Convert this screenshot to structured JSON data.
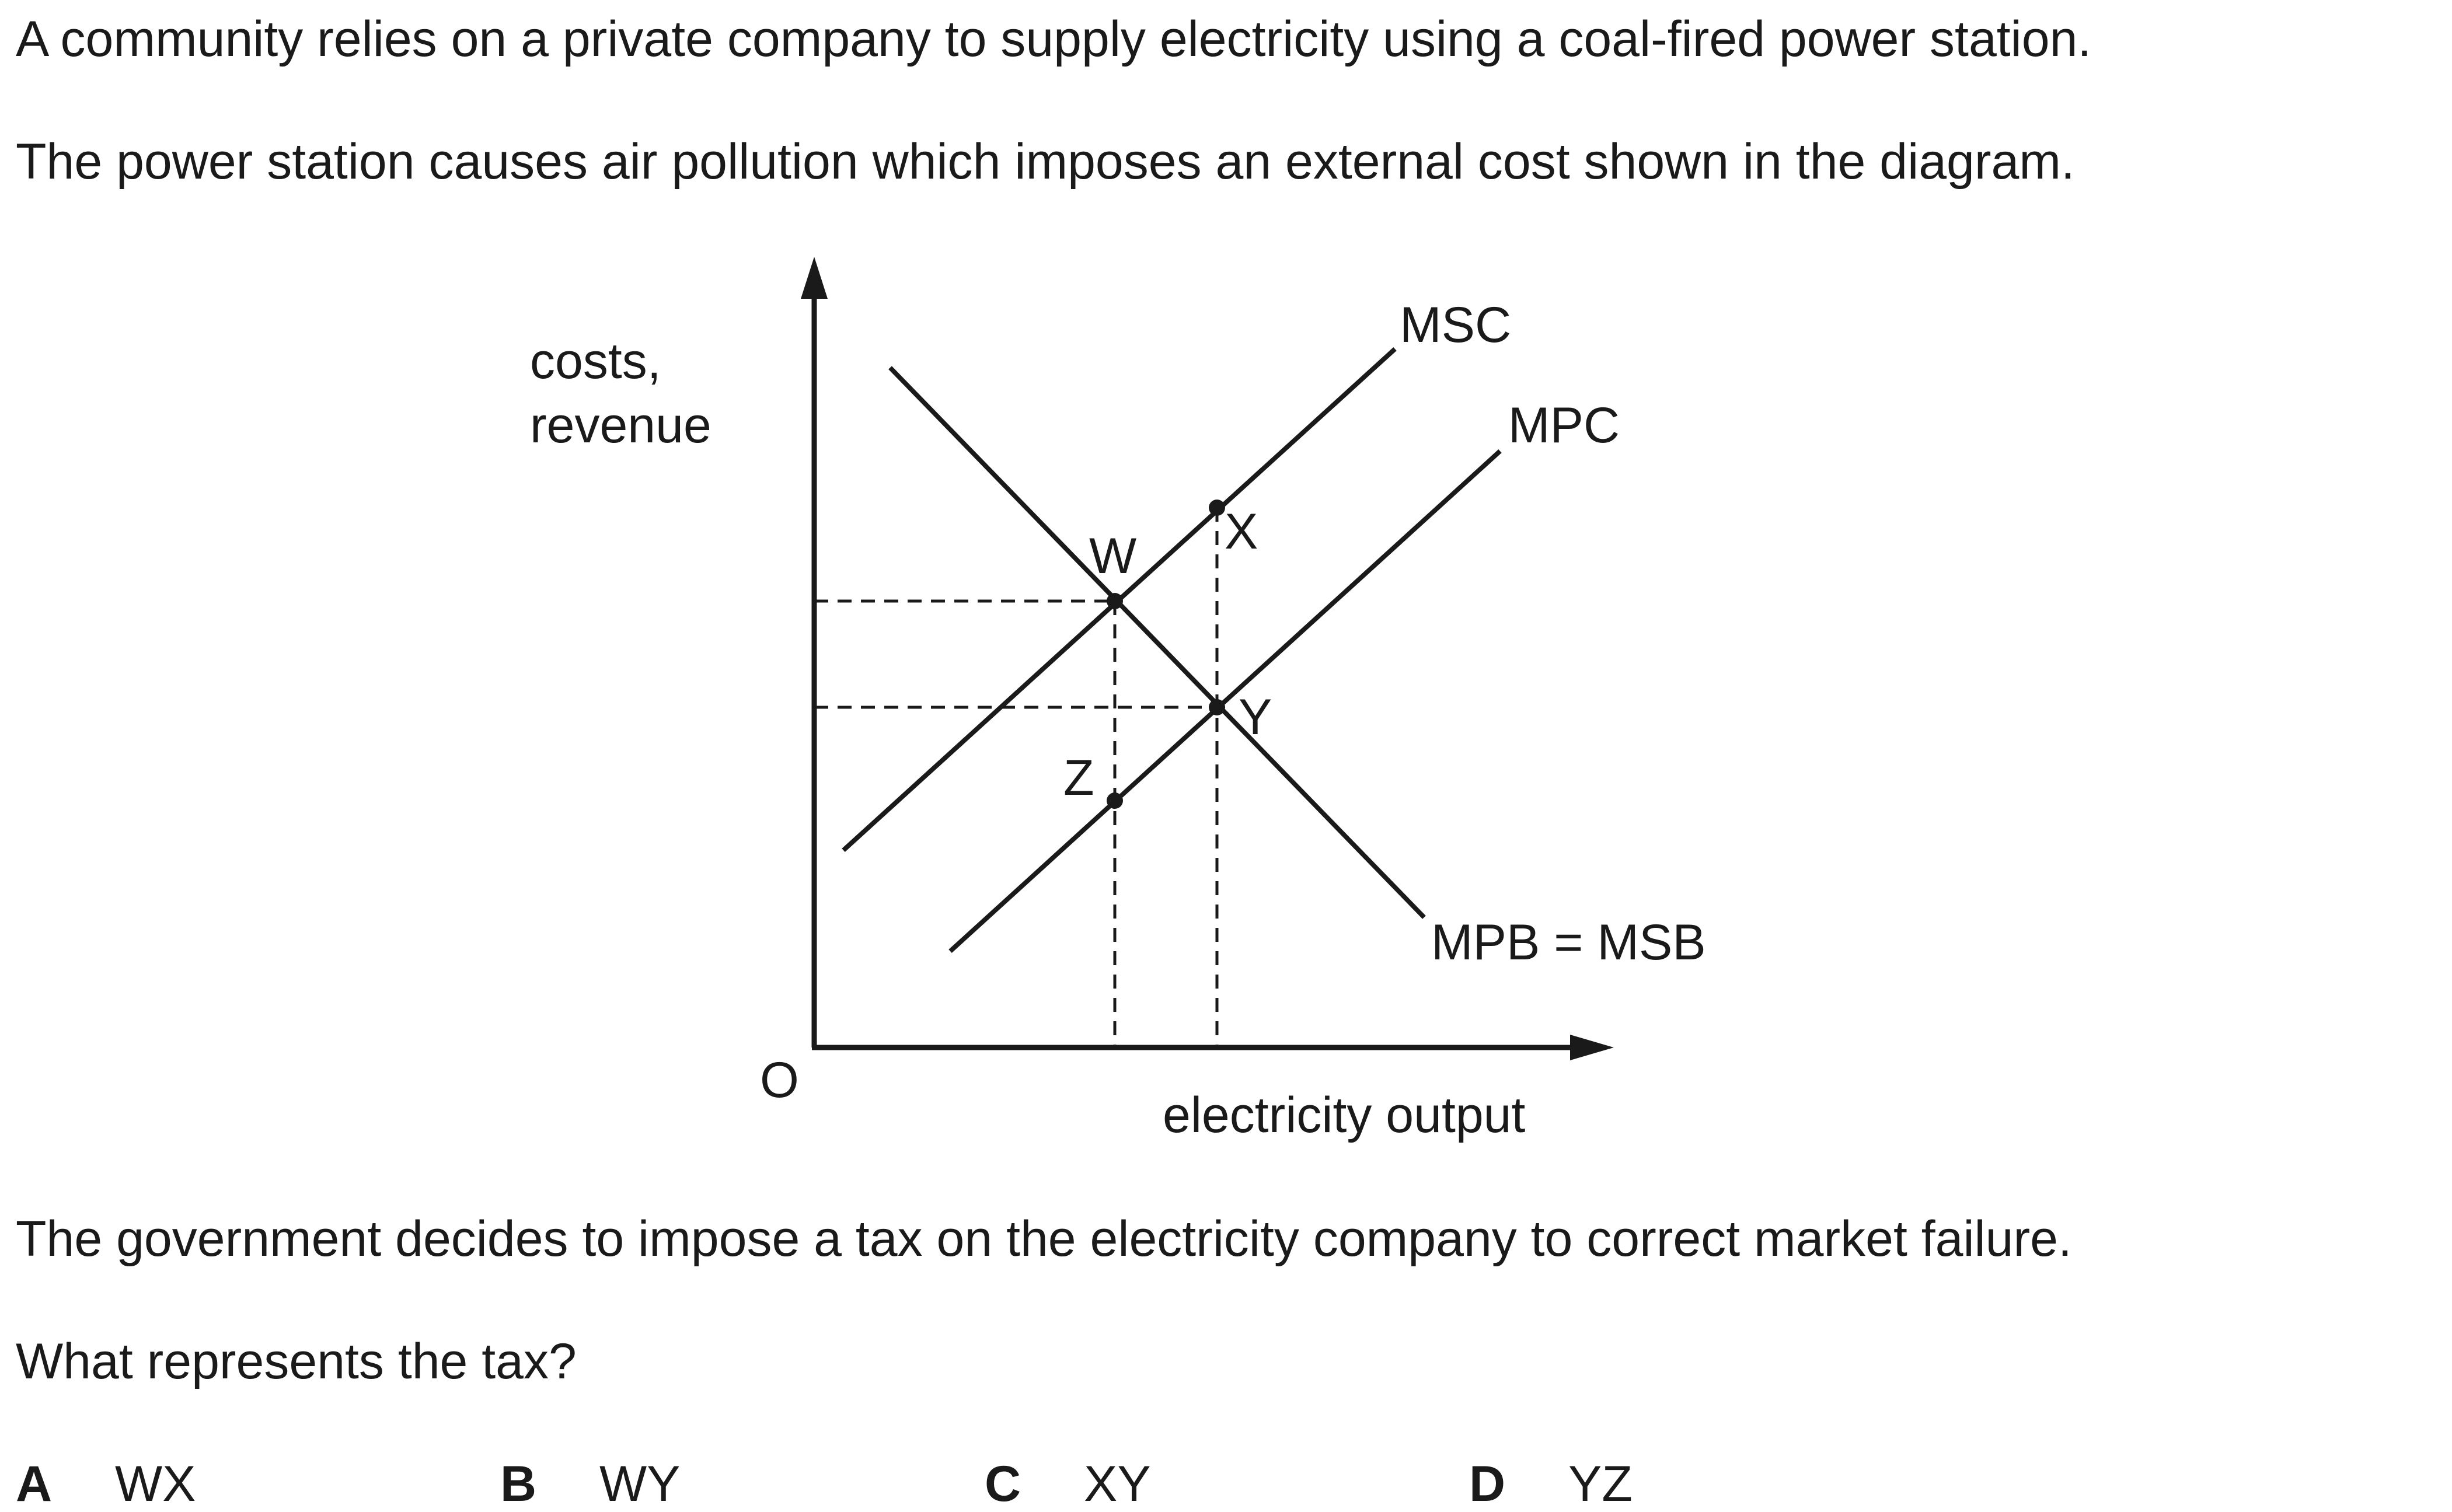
{
  "question": {
    "intro_1": "A community relies on a private company to supply electricity using a coal-fired power station.",
    "intro_2": "The power station causes air pollution which imposes an external cost shown in the diagram.",
    "statement": "The government decides to impose a tax on the electricity company to correct market failure.",
    "prompt": "What represents the tax?"
  },
  "diagram": {
    "y_axis_label_line1": "costs,",
    "y_axis_label_line2": "revenue",
    "x_axis_label": "electricity output",
    "origin_label": "O",
    "curves": {
      "msc": "MSC",
      "mpc": "MPC",
      "mpb": "MPB = MSB"
    },
    "points": {
      "w": "W",
      "x": "X",
      "y": "Y",
      "z": "Z"
    }
  },
  "options": [
    {
      "letter": "A",
      "text": "WX"
    },
    {
      "letter": "B",
      "text": "WY"
    },
    {
      "letter": "C",
      "text": "XY"
    },
    {
      "letter": "D",
      "text": "YZ"
    }
  ]
}
